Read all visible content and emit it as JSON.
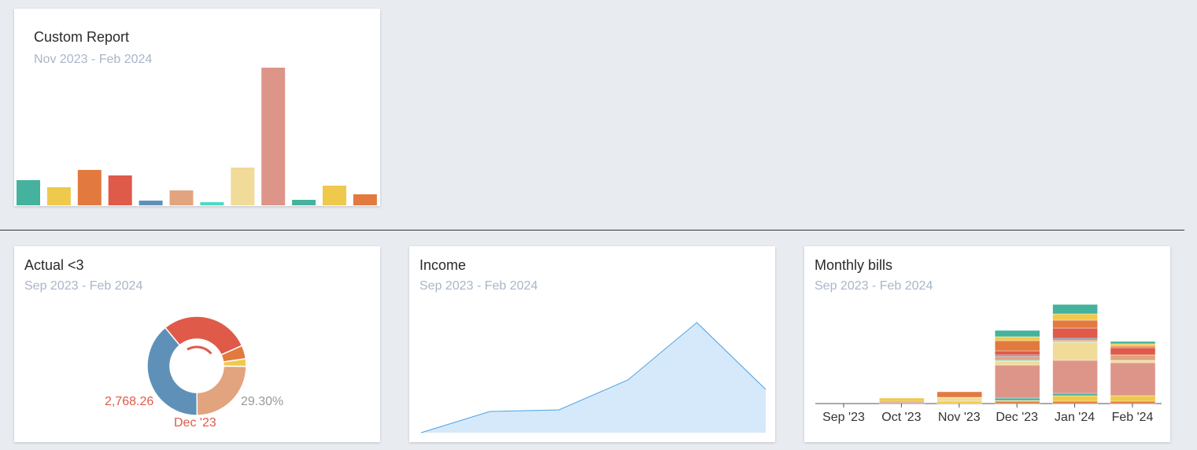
{
  "colors": {
    "teal": "#45b29d",
    "yellow": "#efc94c",
    "orange": "#e27a3f",
    "red": "#df5a49",
    "blue": "#5f91b8",
    "peach": "#e1a47e",
    "cyan": "#4fd8c5",
    "lightyellow": "#f0db98",
    "rose": "#dd958a",
    "background": "#e8ebf0"
  },
  "custom_report": {
    "title": "Custom Report",
    "subtitle": "Nov 2023 - Feb 2024",
    "chart_data": {
      "type": "bar",
      "values": [
        32,
        23,
        45,
        38,
        6,
        19,
        4,
        48,
        175,
        7,
        25,
        14
      ],
      "colors": [
        "teal",
        "yellow",
        "orange",
        "red",
        "blue",
        "peach",
        "cyan",
        "lightyellow",
        "rose",
        "teal",
        "yellow",
        "orange"
      ]
    }
  },
  "actual": {
    "title": "Actual <3",
    "subtitle": "Sep 2023 - Feb 2024",
    "value_label": "2,768.26",
    "percent_label": "29.30%",
    "month_label": "Dec '23",
    "chart_data": {
      "type": "pie",
      "donut": true,
      "slices": [
        {
          "color": "red",
          "percent": 29.3
        },
        {
          "color": "orange",
          "percent": 4.4
        },
        {
          "color": "yellow",
          "percent": 2.5
        },
        {
          "color": "peach",
          "percent": 24.7
        },
        {
          "color": "blue",
          "percent": 39.1
        }
      ]
    }
  },
  "income": {
    "title": "Income",
    "subtitle": "Sep 2023 - Feb 2024",
    "chart_data": {
      "type": "area",
      "values": [
        0,
        27,
        29,
        67,
        140,
        55
      ],
      "line_color": "#4aa3e8",
      "fill_color": "#d6e9fa"
    }
  },
  "bills": {
    "title": "Monthly bills",
    "subtitle": "Sep 2023 - Feb 2024",
    "chart_data": {
      "type": "bar",
      "stacked": true,
      "categories": [
        "Sep '23",
        "Oct '23",
        "Nov '23",
        "Dec '23",
        "Jan '24",
        "Feb '24"
      ],
      "series": [
        [],
        [
          [
            "rose",
            2
          ],
          [
            "red",
            1
          ],
          [
            "yellow",
            4
          ]
        ],
        [
          [
            "yellow",
            3
          ],
          [
            "lightyellow",
            5
          ],
          [
            "orange",
            7
          ]
        ],
        [
          [
            "orange",
            3
          ],
          [
            "yellow",
            1
          ],
          [
            "teal",
            3
          ],
          [
            "rose",
            42
          ],
          [
            "lightyellow",
            5
          ],
          [
            "cyan",
            1
          ],
          [
            "peach",
            5
          ],
          [
            "blue",
            2
          ],
          [
            "red",
            5
          ],
          [
            "orange",
            13
          ],
          [
            "yellow",
            5
          ],
          [
            "teal",
            8
          ]
        ],
        [
          [
            "orange",
            3
          ],
          [
            "yellow",
            7
          ],
          [
            "teal",
            3
          ],
          [
            "rose",
            42
          ],
          [
            "lightyellow",
            23
          ],
          [
            "cyan",
            1
          ],
          [
            "peach",
            2
          ],
          [
            "blue",
            2
          ],
          [
            "red",
            13
          ],
          [
            "orange",
            10
          ],
          [
            "yellow",
            8
          ],
          [
            "teal",
            12
          ]
        ],
        [
          [
            "orange",
            3
          ],
          [
            "yellow",
            7
          ],
          [
            "rose",
            42
          ],
          [
            "lightyellow",
            3
          ],
          [
            "peach",
            7
          ],
          [
            "red",
            9
          ],
          [
            "orange",
            2
          ],
          [
            "yellow",
            3
          ],
          [
            "teal",
            3
          ]
        ]
      ]
    }
  }
}
